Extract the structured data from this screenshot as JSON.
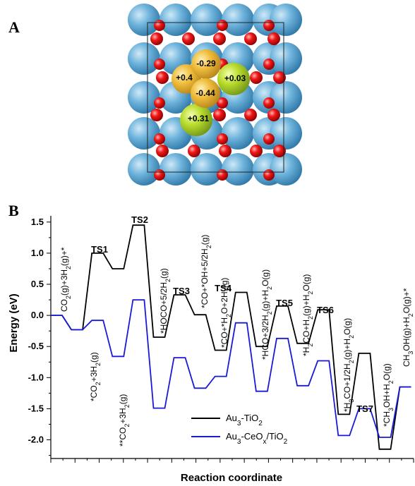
{
  "figure": {
    "panel_a_label": "A",
    "panel_b_label": "B"
  },
  "structure": {
    "charges": [
      "-0.29",
      "+0.4",
      "+0.03",
      "-0.44",
      "+0.31"
    ],
    "colors": {
      "ti_atom": "#5fa8d3",
      "o_atom": "#e8131a",
      "au_atom": "#eab63b",
      "ce_atom": "#b2d42a"
    }
  },
  "chart_data": {
    "type": "line",
    "xlabel": "Reaction coordinate",
    "ylabel": "Energy (eV)",
    "ylim": [
      -2.3,
      1.6
    ],
    "yticks": [
      "1.5",
      "1.0",
      "0.5",
      "0.0",
      "-0.5",
      "-1.0",
      "-1.5",
      "-2.0"
    ],
    "ytick_values": [
      1.5,
      1.0,
      0.5,
      0.0,
      -0.5,
      -1.0,
      -1.5,
      -2.0
    ],
    "x_segments": 15,
    "series": [
      {
        "name": "Au3-TiO2",
        "color": "#000000",
        "levels": [
          0.0,
          -0.23,
          1.0,
          0.75,
          1.45,
          -0.35,
          0.33,
          0.01,
          -0.56,
          0.37,
          -0.5,
          0.15,
          -0.45,
          0.09,
          -1.59,
          -0.61,
          -2.15,
          -1.15
        ]
      },
      {
        "name": "Au3-CeOx/TiO2",
        "color": "#1a1ad6",
        "levels": [
          0.0,
          -0.23,
          -0.08,
          -0.66,
          0.25,
          -1.49,
          -0.68,
          -1.17,
          -0.98,
          -0.12,
          -1.22,
          -0.37,
          -1.13,
          -0.73,
          -1.93,
          -1.5,
          -1.96,
          -1.15
        ]
      }
    ],
    "legend": {
      "position": "bottom-right",
      "entries": [
        "Au3-TiO2",
        "Au3-CeOx/TiO2"
      ]
    },
    "ts_labels": [
      "TS1",
      "TS2",
      "TS3",
      "TS4",
      "TS5",
      "TS6",
      "TS7"
    ],
    "state_labels": [
      "CO2(g)+3H2(g)+*",
      "*CO2+3H2(g)",
      "**CO2+3H2(g)",
      "*HOCO+5/2H2(g)",
      "*CO+*OH+5/2H2(g)",
      "*CO+*H2O+2H2(g)",
      "*HCO+3/2H2(g)+H2O(g)",
      "*H2CO+H2(g)+H2O(g)",
      "*H3CO+1/2H2(g)+H2O(g)",
      "*CH3OH+H2O(g)",
      "CH3OH(g)+H2O(g)+*"
    ]
  }
}
